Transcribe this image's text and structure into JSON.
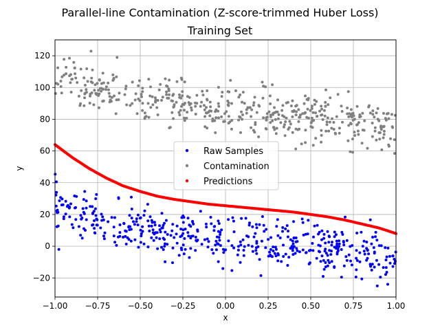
{
  "chart_data": {
    "type": "scatter",
    "title": "Parallel-line Contamination (Z-score-trimmed Huber Loss)",
    "subtitle": "Training Set",
    "xlabel": "x",
    "ylabel": "y",
    "xlim": [
      -1.0,
      1.0
    ],
    "ylim": [
      -32,
      130
    ],
    "xticks": [
      -1.0,
      -0.75,
      -0.5,
      -0.25,
      0.0,
      0.25,
      0.5,
      0.75,
      1.0
    ],
    "xtick_labels": [
      "−1.00",
      "−0.75",
      "−0.50",
      "−0.25",
      "0.00",
      "0.25",
      "0.50",
      "0.75",
      "1.00"
    ],
    "yticks": [
      -20,
      0,
      20,
      40,
      60,
      80,
      100,
      120
    ],
    "ytick_labels": [
      "−20",
      "0",
      "20",
      "40",
      "60",
      "80",
      "100",
      "120"
    ],
    "grid": true,
    "legend_position": "center",
    "series": [
      {
        "name": "Raw Samples",
        "color": "#0000ff",
        "trend": {
          "x": [
            -1.0,
            -0.75,
            -0.5,
            -0.25,
            0.0,
            0.25,
            0.5,
            0.75,
            1.0
          ],
          "y": [
            25,
            15,
            10,
            7,
            4,
            3,
            0,
            -3,
            -8
          ]
        },
        "spread": 7.5,
        "count": 500
      },
      {
        "name": "Contamination",
        "color": "#808080",
        "trend": {
          "x": [
            -1.0,
            -0.75,
            -0.5,
            -0.25,
            0.0,
            0.25,
            0.5,
            0.75,
            1.0
          ],
          "y": [
            110,
            98,
            92,
            88,
            86,
            84,
            82,
            79,
            74
          ]
        },
        "spread": 7.5,
        "count": 500
      },
      {
        "name": "Predictions",
        "color": "#ff0000",
        "x": [
          -1.0,
          -0.9,
          -0.8,
          -0.7,
          -0.6,
          -0.5,
          -0.4,
          -0.3,
          -0.2,
          -0.1,
          0.0,
          0.1,
          0.2,
          0.3,
          0.4,
          0.5,
          0.6,
          0.7,
          0.8,
          0.9,
          1.0
        ],
        "y": [
          64,
          56,
          49,
          43,
          38,
          34.5,
          31.5,
          29.5,
          28,
          26.5,
          25.5,
          24.5,
          23.5,
          22.5,
          21.5,
          20,
          18.5,
          16.5,
          14,
          11.5,
          8
        ],
        "count": 500
      }
    ]
  }
}
